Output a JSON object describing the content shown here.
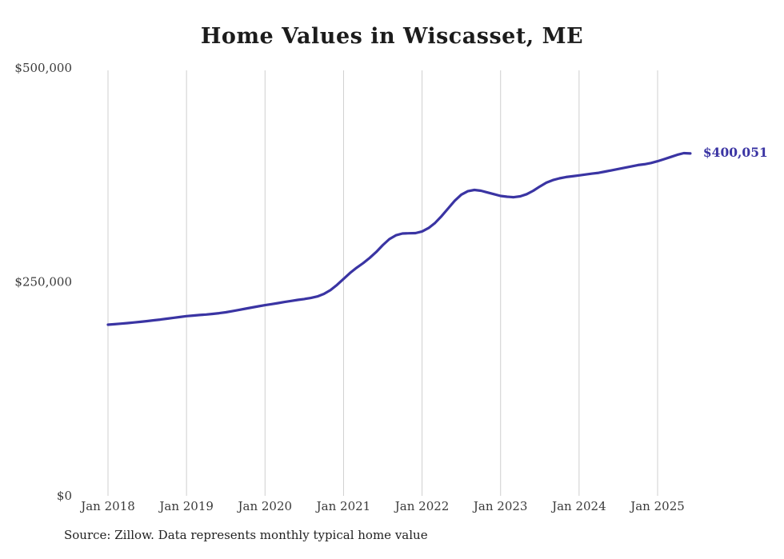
{
  "title": "Home Values in Wiscasset, ME",
  "source_note": "Source: Zillow. Data represents monthly typical home value",
  "end_label": "$400,051",
  "colors": {
    "line": "#3a34a3",
    "grid": "#cfcfcf",
    "tick_text": "#3a3a3a",
    "title_text": "#1c1c1c"
  },
  "chart_data": {
    "type": "line",
    "title": "Home Values in Wiscasset, ME",
    "xlabel": "",
    "ylabel": "",
    "ylim": [
      0,
      500000
    ],
    "grid": "vertical-only",
    "legend": "none",
    "x_start_month": "Jan 2018",
    "x_tick_labels": [
      "Jan 2018",
      "Jan 2019",
      "Jan 2020",
      "Jan 2021",
      "Jan 2022",
      "Jan 2023",
      "Jan 2024",
      "Jan 2025"
    ],
    "y_ticks": [
      {
        "value": 0,
        "label": "$0"
      },
      {
        "value": 250000,
        "label": "$250,000"
      },
      {
        "value": 500000,
        "label": "$500,000"
      }
    ],
    "series": [
      {
        "name": "Monthly typical home value",
        "values": [
          200000,
          200600,
          201200,
          201900,
          202600,
          203400,
          204200,
          205100,
          206000,
          207000,
          208000,
          209000,
          210000,
          210700,
          211300,
          211900,
          212600,
          213500,
          214500,
          215800,
          217200,
          218700,
          220100,
          221500,
          222800,
          224000,
          225200,
          226500,
          227800,
          229000,
          230000,
          231200,
          233000,
          236000,
          240500,
          246500,
          253500,
          260500,
          266500,
          272000,
          278000,
          285000,
          293000,
          300000,
          304500,
          306500,
          306800,
          307000,
          309000,
          313000,
          319000,
          327000,
          336000,
          345000,
          352000,
          356000,
          357500,
          356500,
          354500,
          352500,
          350500,
          349500,
          349000,
          350000,
          352500,
          356500,
          361500,
          366000,
          369000,
          371000,
          372500,
          373500,
          374500,
          375500,
          376500,
          377500,
          379000,
          380500,
          382000,
          383500,
          385000,
          386500,
          387500,
          389000,
          391000,
          393500,
          396000,
          398500,
          400500,
          400051
        ]
      }
    ],
    "final_value": 400051,
    "final_value_label": "$400,051"
  }
}
